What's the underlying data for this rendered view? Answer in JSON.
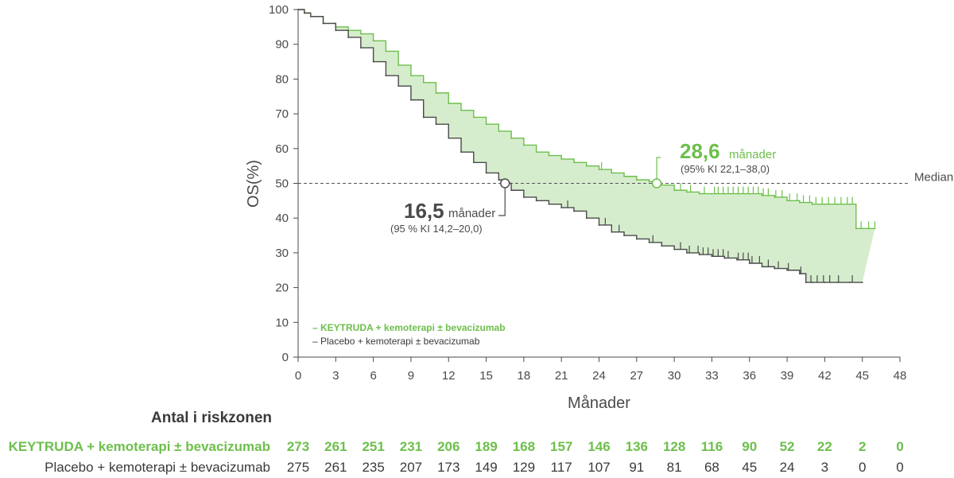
{
  "chart_data": {
    "type": "line",
    "ylabel": "OS(%)",
    "xlabel": "Månader",
    "xlim": [
      0,
      48
    ],
    "ylim": [
      0,
      100
    ],
    "x_ticks": [
      0,
      3,
      6,
      9,
      12,
      15,
      18,
      21,
      24,
      27,
      30,
      33,
      36,
      39,
      42,
      45,
      48
    ],
    "y_ticks": [
      0,
      10,
      20,
      30,
      40,
      50,
      60,
      70,
      80,
      90,
      100
    ],
    "median_line": {
      "y": 50,
      "label": "Median"
    },
    "series": [
      {
        "name": "KEYTRUDA + kemoterapi ± bevacizumab",
        "legend_text": "– KEYTRUDA + kemoterapi ± bevacizumab",
        "color": "#6dbf4b",
        "x": [
          0,
          0.5,
          1,
          2,
          3,
          4,
          5,
          6,
          7,
          8,
          9,
          10,
          11,
          12,
          13,
          14,
          15,
          16,
          17,
          18,
          19,
          20,
          21,
          22,
          23,
          24,
          25,
          26,
          27,
          28,
          28.6,
          29,
          30,
          31,
          32,
          33,
          34,
          35,
          36,
          37,
          38,
          39,
          40,
          41,
          42,
          43,
          44,
          44.5,
          45,
          46
        ],
        "y": [
          100,
          99,
          98,
          96,
          95,
          94,
          93,
          91,
          88,
          84,
          81,
          79,
          76,
          73,
          71,
          69,
          67,
          65,
          63,
          61,
          59,
          58,
          57,
          56,
          55,
          54,
          53,
          52,
          51,
          50.5,
          50,
          49.5,
          48,
          47.5,
          47,
          47,
          47,
          47,
          47,
          46.5,
          46,
          45,
          44.5,
          44,
          44,
          44,
          44,
          37,
          37,
          37
        ],
        "median": {
          "value": "28,6",
          "unit": "månader",
          "ci": "(95% KI 22,1–38,0)",
          "x": 28.6
        }
      },
      {
        "name": "Placebo + kemoterapi ± bevacizumab",
        "legend_text": "– Placebo + kemoterapi ± bevacizumab",
        "color": "#4a4a4a",
        "x": [
          0,
          0.5,
          1,
          2,
          3,
          4,
          5,
          6,
          7,
          8,
          9,
          10,
          11,
          12,
          13,
          14,
          15,
          16,
          16.5,
          17,
          18,
          19,
          20,
          21,
          22,
          23,
          24,
          25,
          26,
          27,
          28,
          29,
          30,
          31,
          32,
          33,
          34,
          35,
          36,
          37,
          38,
          39,
          40,
          40.5,
          41,
          42,
          43,
          44,
          45
        ],
        "y": [
          100,
          99,
          98,
          96,
          94,
          92,
          89,
          85,
          81,
          78,
          74,
          69,
          67,
          63,
          59,
          56,
          53,
          51,
          50,
          48,
          46,
          45,
          44,
          43,
          42,
          40,
          38,
          36,
          35,
          34,
          33,
          32,
          31,
          30,
          29.5,
          29,
          28.5,
          28,
          27,
          26,
          25.5,
          25,
          24,
          21.5,
          21.5,
          21.5,
          21.5,
          21.5,
          21.5
        ],
        "median": {
          "value": "16,5",
          "unit": "månader",
          "ci": "(95 % KI 14,2–20,0)",
          "x": 16.5
        }
      }
    ],
    "risk_table": {
      "title": "Antal i riskzonen",
      "times": [
        0,
        3,
        6,
        9,
        12,
        15,
        18,
        21,
        24,
        27,
        30,
        33,
        36,
        39,
        42,
        45,
        48
      ],
      "rows": [
        {
          "label": "KEYTRUDA + kemoterapi ± bevacizumab",
          "values": [
            "273",
            "261",
            "251",
            "231",
            "206",
            "189",
            "168",
            "157",
            "146",
            "136",
            "128",
            "116",
            "90",
            "52",
            "22",
            "2",
            "0"
          ]
        },
        {
          "label": "Placebo + kemoterapi ± bevacizumab",
          "values": [
            "275",
            "261",
            "235",
            "207",
            "173",
            "149",
            "129",
            "117",
            "107",
            "91",
            "81",
            "68",
            "45",
            "24",
            "3",
            "0",
            "0"
          ]
        }
      ]
    }
  }
}
